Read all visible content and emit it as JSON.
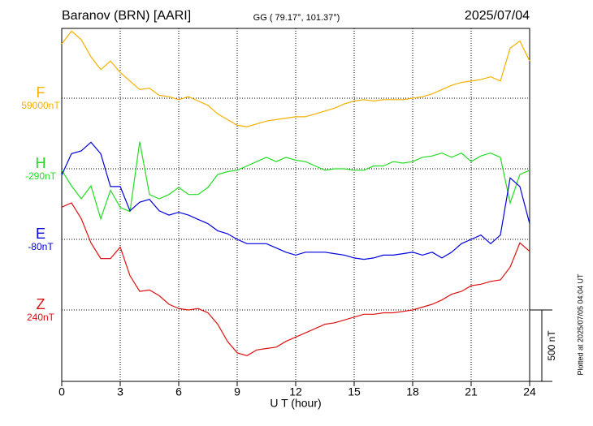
{
  "chart_data": {
    "type": "line",
    "title": "Baranov (BRN)  [AARI]",
    "subtitle": "GG ( 79.17°, 101.37°)",
    "date": "2025/07/04",
    "x_label": "U T (hour)",
    "footnote": "Plotted at 2025/07/05 04:04 UT",
    "scale_bar": {
      "value": 500,
      "label": "500 nT"
    },
    "xlim": [
      0,
      24
    ],
    "xticks": [
      0,
      3,
      6,
      9,
      12,
      15,
      18,
      21,
      24
    ],
    "grid": true,
    "x": [
      0,
      0.5,
      1,
      1.5,
      2,
      2.5,
      3,
      3.5,
      4,
      4.5,
      5,
      5.5,
      6,
      6.5,
      7,
      7.5,
      8,
      8.5,
      9,
      9.5,
      10,
      10.5,
      11,
      11.5,
      12,
      12.5,
      13,
      13.5,
      14,
      14.5,
      15,
      15.5,
      16,
      16.5,
      17,
      17.5,
      18,
      18.5,
      19,
      19.5,
      20,
      20.5,
      21,
      21.5,
      22,
      22.5,
      23,
      23.5,
      24
    ],
    "series": [
      {
        "name": "F",
        "color": "#f5b000",
        "baseline": {
          "value": 59000,
          "label": "59000nT"
        },
        "values": [
          59380,
          59470,
          59410,
          59290,
          59200,
          59260,
          59180,
          59120,
          59060,
          59070,
          59020,
          59010,
          58990,
          59010,
          58980,
          58950,
          58890,
          58850,
          58810,
          58800,
          58820,
          58840,
          58850,
          58860,
          58870,
          58870,
          58890,
          58910,
          58930,
          58960,
          58980,
          58990,
          58980,
          58990,
          58990,
          58990,
          59000,
          59010,
          59030,
          59060,
          59090,
          59110,
          59120,
          59130,
          59150,
          59120,
          59350,
          59400,
          59260
        ]
      },
      {
        "name": "H",
        "color": "#22dd22",
        "baseline": {
          "value": -290,
          "label": "-290nT"
        },
        "values": [
          -300,
          -410,
          -500,
          -410,
          -640,
          -440,
          -560,
          -590,
          -100,
          -470,
          -500,
          -470,
          -420,
          -470,
          -470,
          -420,
          -330,
          -310,
          -300,
          -270,
          -240,
          -210,
          -240,
          -210,
          -230,
          -240,
          -270,
          -300,
          -290,
          -290,
          -300,
          -300,
          -270,
          -270,
          -240,
          -250,
          -240,
          -210,
          -200,
          -180,
          -210,
          -180,
          -240,
          -200,
          -180,
          -210,
          -530,
          -330,
          -300
        ]
      },
      {
        "name": "E",
        "color": "#0000dd",
        "baseline": {
          "value": -80,
          "label": "-80nT"
        },
        "values": [
          370,
          520,
          540,
          600,
          520,
          290,
          290,
          120,
          180,
          200,
          120,
          90,
          110,
          90,
          60,
          30,
          -20,
          -40,
          -80,
          -110,
          -110,
          -110,
          -140,
          -170,
          -190,
          -170,
          -170,
          -170,
          -180,
          -190,
          -210,
          -220,
          -210,
          -190,
          -190,
          -180,
          -170,
          -190,
          -170,
          -210,
          -170,
          -110,
          -80,
          -50,
          -110,
          -50,
          350,
          290,
          30
        ]
      },
      {
        "name": "Z",
        "color": "#dd1111",
        "baseline": {
          "value": 240,
          "label": "240nT"
        },
        "values": [
          960,
          990,
          880,
          710,
          600,
          600,
          680,
          480,
          370,
          380,
          340,
          280,
          250,
          240,
          250,
          220,
          140,
          20,
          -60,
          -80,
          -40,
          -30,
          -20,
          20,
          50,
          80,
          110,
          140,
          150,
          170,
          190,
          210,
          210,
          220,
          220,
          230,
          240,
          260,
          280,
          310,
          350,
          370,
          410,
          420,
          440,
          450,
          540,
          710,
          650
        ]
      }
    ]
  }
}
